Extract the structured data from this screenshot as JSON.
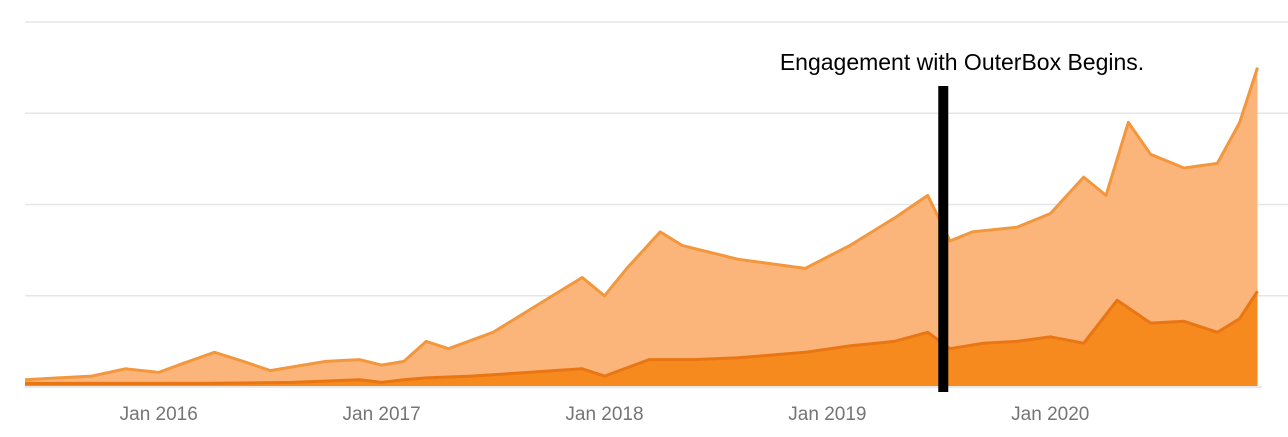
{
  "chart_data": {
    "type": "area",
    "title": "",
    "xlabel": "",
    "ylabel": "",
    "x_range": [
      2015.4,
      2020.95
    ],
    "ylim": [
      0,
      4
    ],
    "grid": true,
    "legend": "none",
    "x_ticks": [
      {
        "value": 2016.0,
        "label": "Jan 2016"
      },
      {
        "value": 2017.0,
        "label": "Jan 2017"
      },
      {
        "value": 2018.0,
        "label": "Jan 2018"
      },
      {
        "value": 2019.0,
        "label": "Jan 2019"
      },
      {
        "value": 2020.0,
        "label": "Jan 2020"
      }
    ],
    "annotation": {
      "x": 2019.52,
      "text": "Engagement with OuterBox Begins."
    },
    "series": [
      {
        "color": "#fbb57a",
        "stroke": "#f3973d",
        "points": [
          [
            2015.4,
            0.08
          ],
          [
            2015.55,
            0.1
          ],
          [
            2015.7,
            0.12
          ],
          [
            2015.85,
            0.2
          ],
          [
            2016.0,
            0.16
          ],
          [
            2016.1,
            0.25
          ],
          [
            2016.25,
            0.38
          ],
          [
            2016.38,
            0.28
          ],
          [
            2016.5,
            0.18
          ],
          [
            2016.6,
            0.22
          ],
          [
            2016.75,
            0.28
          ],
          [
            2016.9,
            0.3
          ],
          [
            2017.0,
            0.24
          ],
          [
            2017.1,
            0.28
          ],
          [
            2017.2,
            0.5
          ],
          [
            2017.3,
            0.42
          ],
          [
            2017.5,
            0.6
          ],
          [
            2017.7,
            0.9
          ],
          [
            2017.9,
            1.2
          ],
          [
            2018.0,
            1.0
          ],
          [
            2018.1,
            1.3
          ],
          [
            2018.25,
            1.7
          ],
          [
            2018.35,
            1.55
          ],
          [
            2018.6,
            1.4
          ],
          [
            2018.9,
            1.3
          ],
          [
            2019.1,
            1.55
          ],
          [
            2019.3,
            1.85
          ],
          [
            2019.45,
            2.1
          ],
          [
            2019.55,
            1.6
          ],
          [
            2019.65,
            1.7
          ],
          [
            2019.85,
            1.75
          ],
          [
            2020.0,
            1.9
          ],
          [
            2020.15,
            2.3
          ],
          [
            2020.25,
            2.1
          ],
          [
            2020.35,
            2.9
          ],
          [
            2020.45,
            2.55
          ],
          [
            2020.6,
            2.4
          ],
          [
            2020.75,
            2.45
          ],
          [
            2020.85,
            2.9
          ],
          [
            2020.93,
            3.5
          ]
        ]
      },
      {
        "color": "#f78a1f",
        "stroke": "#e97612",
        "points": [
          [
            2015.4,
            0.04
          ],
          [
            2015.8,
            0.04
          ],
          [
            2016.2,
            0.04
          ],
          [
            2016.6,
            0.05
          ],
          [
            2016.9,
            0.08
          ],
          [
            2017.0,
            0.05
          ],
          [
            2017.1,
            0.08
          ],
          [
            2017.2,
            0.1
          ],
          [
            2017.4,
            0.12
          ],
          [
            2017.6,
            0.15
          ],
          [
            2017.9,
            0.2
          ],
          [
            2018.0,
            0.12
          ],
          [
            2018.2,
            0.3
          ],
          [
            2018.4,
            0.3
          ],
          [
            2018.6,
            0.32
          ],
          [
            2018.9,
            0.38
          ],
          [
            2019.1,
            0.45
          ],
          [
            2019.3,
            0.5
          ],
          [
            2019.45,
            0.6
          ],
          [
            2019.55,
            0.42
          ],
          [
            2019.7,
            0.48
          ],
          [
            2019.85,
            0.5
          ],
          [
            2020.0,
            0.55
          ],
          [
            2020.15,
            0.48
          ],
          [
            2020.3,
            0.95
          ],
          [
            2020.45,
            0.7
          ],
          [
            2020.6,
            0.72
          ],
          [
            2020.75,
            0.6
          ],
          [
            2020.85,
            0.75
          ],
          [
            2020.93,
            1.05
          ]
        ]
      }
    ]
  }
}
